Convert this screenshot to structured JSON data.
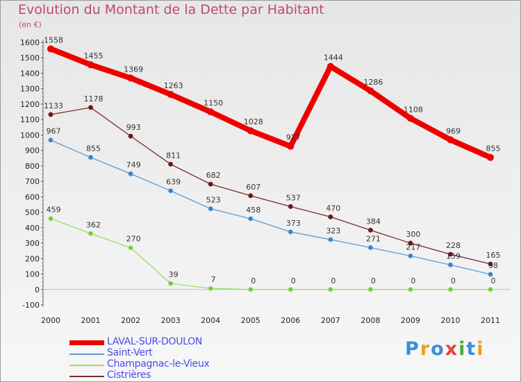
{
  "chart_data": {
    "type": "line",
    "title": "Evolution du Montant de la Dette par Habitant",
    "subtitle": "(en €)",
    "x": [
      "2000",
      "2001",
      "2002",
      "2003",
      "2004",
      "2005",
      "2006",
      "2007",
      "2008",
      "2009",
      "2010",
      "2011"
    ],
    "y_ticks": [
      -100,
      0,
      100,
      200,
      300,
      400,
      500,
      600,
      700,
      800,
      900,
      1000,
      1100,
      1200,
      1300,
      1400,
      1500,
      1600
    ],
    "ylim": [
      -100,
      1600
    ],
    "grid": false,
    "legend_position": "bottom-left",
    "series": [
      {
        "name": "LAVAL-SUR-DOULON",
        "color": "#ee0000",
        "values": [
          1558,
          1455,
          1369,
          1263,
          1150,
          1028,
          927,
          1444,
          1286,
          1108,
          969,
          855
        ]
      },
      {
        "name": "Saint-Vert",
        "color": "#5a9bd5",
        "values": [
          967,
          855,
          749,
          639,
          523,
          458,
          373,
          323,
          271,
          217,
          159,
          98
        ]
      },
      {
        "name": "Champagnac-le-Vieux",
        "color": "#99dd66",
        "values": [
          459,
          362,
          270,
          39,
          7,
          0,
          0,
          0,
          0,
          0,
          0,
          0
        ]
      },
      {
        "name": "Cistrières",
        "color": "#7a2a2a",
        "values": [
          1133,
          1178,
          993,
          811,
          682,
          607,
          537,
          470,
          384,
          300,
          228,
          165
        ]
      }
    ]
  },
  "logo": {
    "text": "Proxiti",
    "letters": [
      {
        "ch": "P",
        "color": "#3a8fd8"
      },
      {
        "ch": "r",
        "color": "#e8a020"
      },
      {
        "ch": "o",
        "color": "#3a8fd8"
      },
      {
        "ch": "x",
        "color": "#e84040"
      },
      {
        "ch": "i",
        "color": "#4aaa3a"
      },
      {
        "ch": "t",
        "color": "#3a8fd8"
      },
      {
        "ch": "i",
        "color": "#e8a020"
      }
    ]
  }
}
